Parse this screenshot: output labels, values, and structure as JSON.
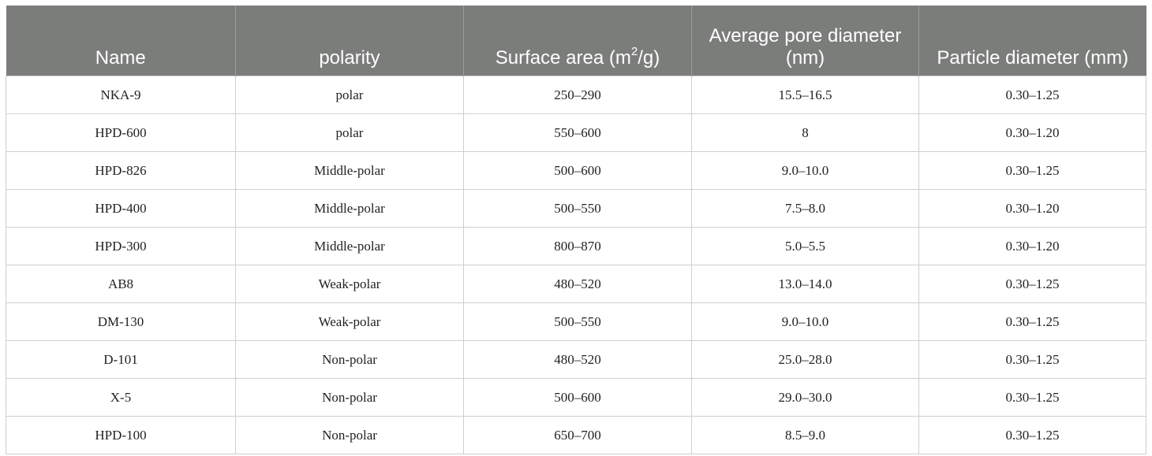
{
  "table": {
    "headers": [
      {
        "text": "Name"
      },
      {
        "text": "polarity"
      },
      {
        "text": "Surface area (m",
        "sup": "2",
        "after": "/g)"
      },
      {
        "text": "Average pore diameter (nm)"
      },
      {
        "text": "Particle diameter (mm)"
      }
    ],
    "rows": [
      [
        "NKA-9",
        "polar",
        "250–290",
        "15.5–16.5",
        "0.30–1.25"
      ],
      [
        "HPD-600",
        "polar",
        "550–600",
        "8",
        "0.30–1.20"
      ],
      [
        "HPD-826",
        "Middle-polar",
        "500–600",
        "9.0–10.0",
        "0.30–1.25"
      ],
      [
        "HPD-400",
        "Middle-polar",
        "500–550",
        "7.5–8.0",
        "0.30–1.20"
      ],
      [
        "HPD-300",
        "Middle-polar",
        "800–870",
        "5.0–5.5",
        "0.30–1.20"
      ],
      [
        "AB8",
        "Weak-polar",
        "480–520",
        "13.0–14.0",
        "0.30–1.25"
      ],
      [
        "DM-130",
        "Weak-polar",
        "500–550",
        "9.0–10.0",
        "0.30–1.25"
      ],
      [
        "D-101",
        "Non-polar",
        "480–520",
        "25.0–28.0",
        "0.30–1.25"
      ],
      [
        "X-5",
        "Non-polar",
        "500–600",
        "29.0–30.0",
        "0.30–1.25"
      ],
      [
        "HPD-100",
        "Non-polar",
        "650–700",
        "8.5–9.0",
        "0.30–1.25"
      ]
    ]
  },
  "colors": {
    "header_bg": "#7b7d7b",
    "header_text": "#ffffff",
    "grid": "#cfcfcf"
  }
}
